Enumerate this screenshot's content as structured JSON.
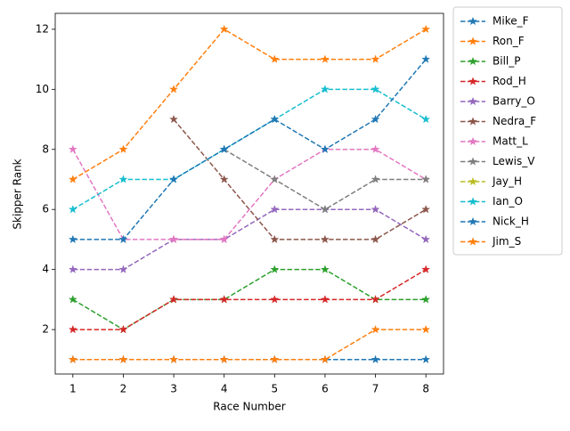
{
  "chart_data": {
    "type": "line",
    "x_label": "Race Number",
    "y_label": "Skipper Rank",
    "x": [
      1,
      2,
      3,
      4,
      5,
      6,
      7,
      8
    ],
    "xlim": [
      0.65,
      8.35
    ],
    "xticks": [
      1,
      2,
      3,
      4,
      5,
      6,
      7,
      8
    ],
    "ylim": [
      0.52,
      12.53
    ],
    "yticks": [
      2,
      4,
      6,
      8,
      10,
      12
    ],
    "grid": false,
    "legend": "outside right",
    "line_style": "dashed",
    "marker": "star",
    "series": [
      {
        "name": "Mike_F",
        "color": "#1f77b4",
        "values": [
          1,
          1,
          1,
          1,
          1,
          1,
          1,
          1
        ]
      },
      {
        "name": "Ron_F",
        "color": "#ff7f0e",
        "values": [
          1,
          1,
          1,
          1,
          1,
          1,
          2,
          2
        ]
      },
      {
        "name": "Bill_P",
        "color": "#2ca02c",
        "values": [
          3,
          2,
          3,
          3,
          4,
          4,
          3,
          3
        ]
      },
      {
        "name": "Rod_H",
        "color": "#d62728",
        "values": [
          2,
          2,
          3,
          3,
          3,
          3,
          3,
          4
        ]
      },
      {
        "name": "Barry_O",
        "color": "#9467bd",
        "values": [
          4,
          4,
          5,
          5,
          6,
          6,
          6,
          5
        ]
      },
      {
        "name": "Nedra_F",
        "color": "#8c564b",
        "values": [
          null,
          null,
          9,
          7,
          5,
          5,
          5,
          6
        ]
      },
      {
        "name": "Matt_L",
        "color": "#e377c2",
        "values": [
          8,
          5,
          5,
          5,
          7,
          8,
          8,
          7
        ]
      },
      {
        "name": "Lewis_V",
        "color": "#7f7f7f",
        "values": [
          null,
          null,
          null,
          8,
          7,
          6,
          7,
          7
        ]
      },
      {
        "name": "Jay_H",
        "color": "#bcbd22",
        "values": [
          null,
          null,
          null,
          null,
          null,
          null,
          null,
          null
        ]
      },
      {
        "name": "Ian_O",
        "color": "#17becf",
        "values": [
          6,
          7,
          7,
          8,
          9,
          10,
          10,
          9
        ]
      },
      {
        "name": "Nick_H",
        "color": "#1f77b4",
        "values": [
          5,
          5,
          7,
          8,
          9,
          8,
          9,
          11
        ]
      },
      {
        "name": "Jim_S",
        "color": "#ff7f0e",
        "values": [
          7,
          8,
          10,
          12,
          11,
          11,
          11,
          12
        ]
      }
    ]
  }
}
